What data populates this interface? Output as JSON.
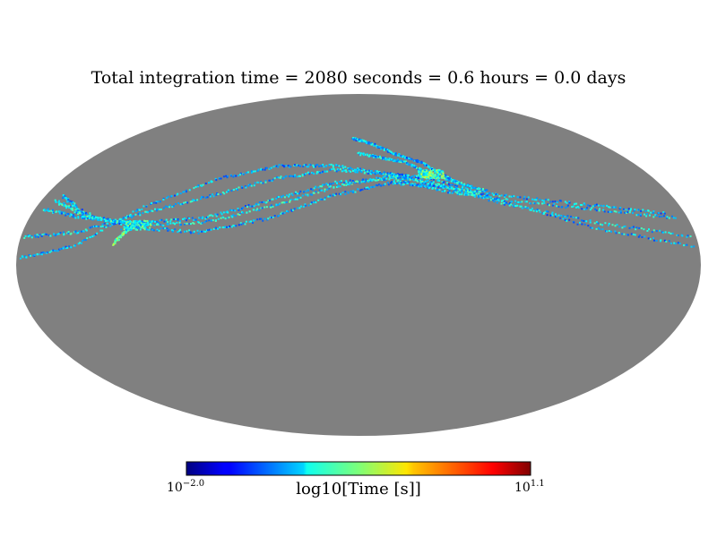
{
  "chart_data": {
    "type": "heatmap",
    "projection": "mollweide",
    "title": "Total integration time = 2080 seconds = 0.6 hours = 0.0 days",
    "background_color": "#808080",
    "colormap": "jet",
    "colorbar": {
      "label": "log10[Time [s]]",
      "min": {
        "base": "10",
        "exp": "−2.0"
      },
      "max": {
        "base": "10",
        "exp": "1.1"
      },
      "log_min": -2.0,
      "log_max": 1.1,
      "placement": "bottom"
    },
    "tracks": [
      {
        "points": [
          [
            -178,
            3
          ],
          [
            -150,
            8
          ],
          [
            -120,
            25
          ],
          [
            -85,
            38
          ],
          [
            -50,
            44
          ],
          [
            -15,
            44
          ],
          [
            20,
            40
          ],
          [
            45,
            38
          ],
          [
            80,
            28
          ],
          [
            130,
            15
          ],
          [
            178,
            8
          ]
        ],
        "level": 0.3
      },
      {
        "points": [
          [
            -178,
            12
          ],
          [
            -150,
            14
          ],
          [
            -120,
            22
          ],
          [
            -85,
            30
          ],
          [
            -50,
            38
          ],
          [
            -15,
            42
          ],
          [
            20,
            40
          ],
          [
            50,
            34
          ],
          [
            85,
            26
          ],
          [
            130,
            18
          ],
          [
            178,
            12
          ]
        ],
        "level": 0.33
      },
      {
        "points": [
          [
            -175,
            24
          ],
          [
            -150,
            20
          ],
          [
            -120,
            18
          ],
          [
            -85,
            20
          ],
          [
            -50,
            28
          ],
          [
            -15,
            36
          ],
          [
            20,
            38
          ],
          [
            50,
            32
          ],
          [
            85,
            28
          ],
          [
            130,
            24
          ],
          [
            175,
            20
          ]
        ],
        "level": 0.32
      },
      {
        "points": [
          [
            -170,
            30
          ],
          [
            -150,
            22
          ],
          [
            -120,
            16
          ],
          [
            -85,
            14
          ],
          [
            -50,
            20
          ],
          [
            -15,
            30
          ],
          [
            20,
            36
          ],
          [
            50,
            34
          ],
          [
            85,
            30
          ],
          [
            130,
            26
          ],
          [
            170,
            22
          ]
        ],
        "level": 0.3
      },
      {
        "points": [
          [
            -172,
            28
          ],
          [
            -150,
            21
          ],
          [
            -120,
            17
          ],
          [
            -85,
            18
          ],
          [
            -50,
            25
          ],
          [
            -15,
            34
          ],
          [
            20,
            39
          ],
          [
            45,
            36
          ],
          [
            70,
            30
          ]
        ],
        "level": 0.36
      },
      {
        "points": [
          [
            -5,
            58
          ],
          [
            10,
            55
          ],
          [
            25,
            50
          ],
          [
            40,
            46
          ],
          [
            52,
            40
          ],
          [
            62,
            35
          ]
        ],
        "level": 0.3
      },
      {
        "points": [
          [
            0,
            50
          ],
          [
            15,
            48
          ],
          [
            30,
            46
          ],
          [
            45,
            40
          ],
          [
            60,
            36
          ],
          [
            75,
            32
          ]
        ],
        "level": 0.34
      },
      {
        "points": [
          [
            -130,
            9
          ],
          [
            -125,
            14
          ],
          [
            -120,
            17
          ]
        ],
        "level": 0.45
      }
    ],
    "hotspots": [
      {
        "lon": -120,
        "lat": 17,
        "level": 0.55
      },
      {
        "lon": 45,
        "lat": 40,
        "level": 0.6
      }
    ]
  }
}
